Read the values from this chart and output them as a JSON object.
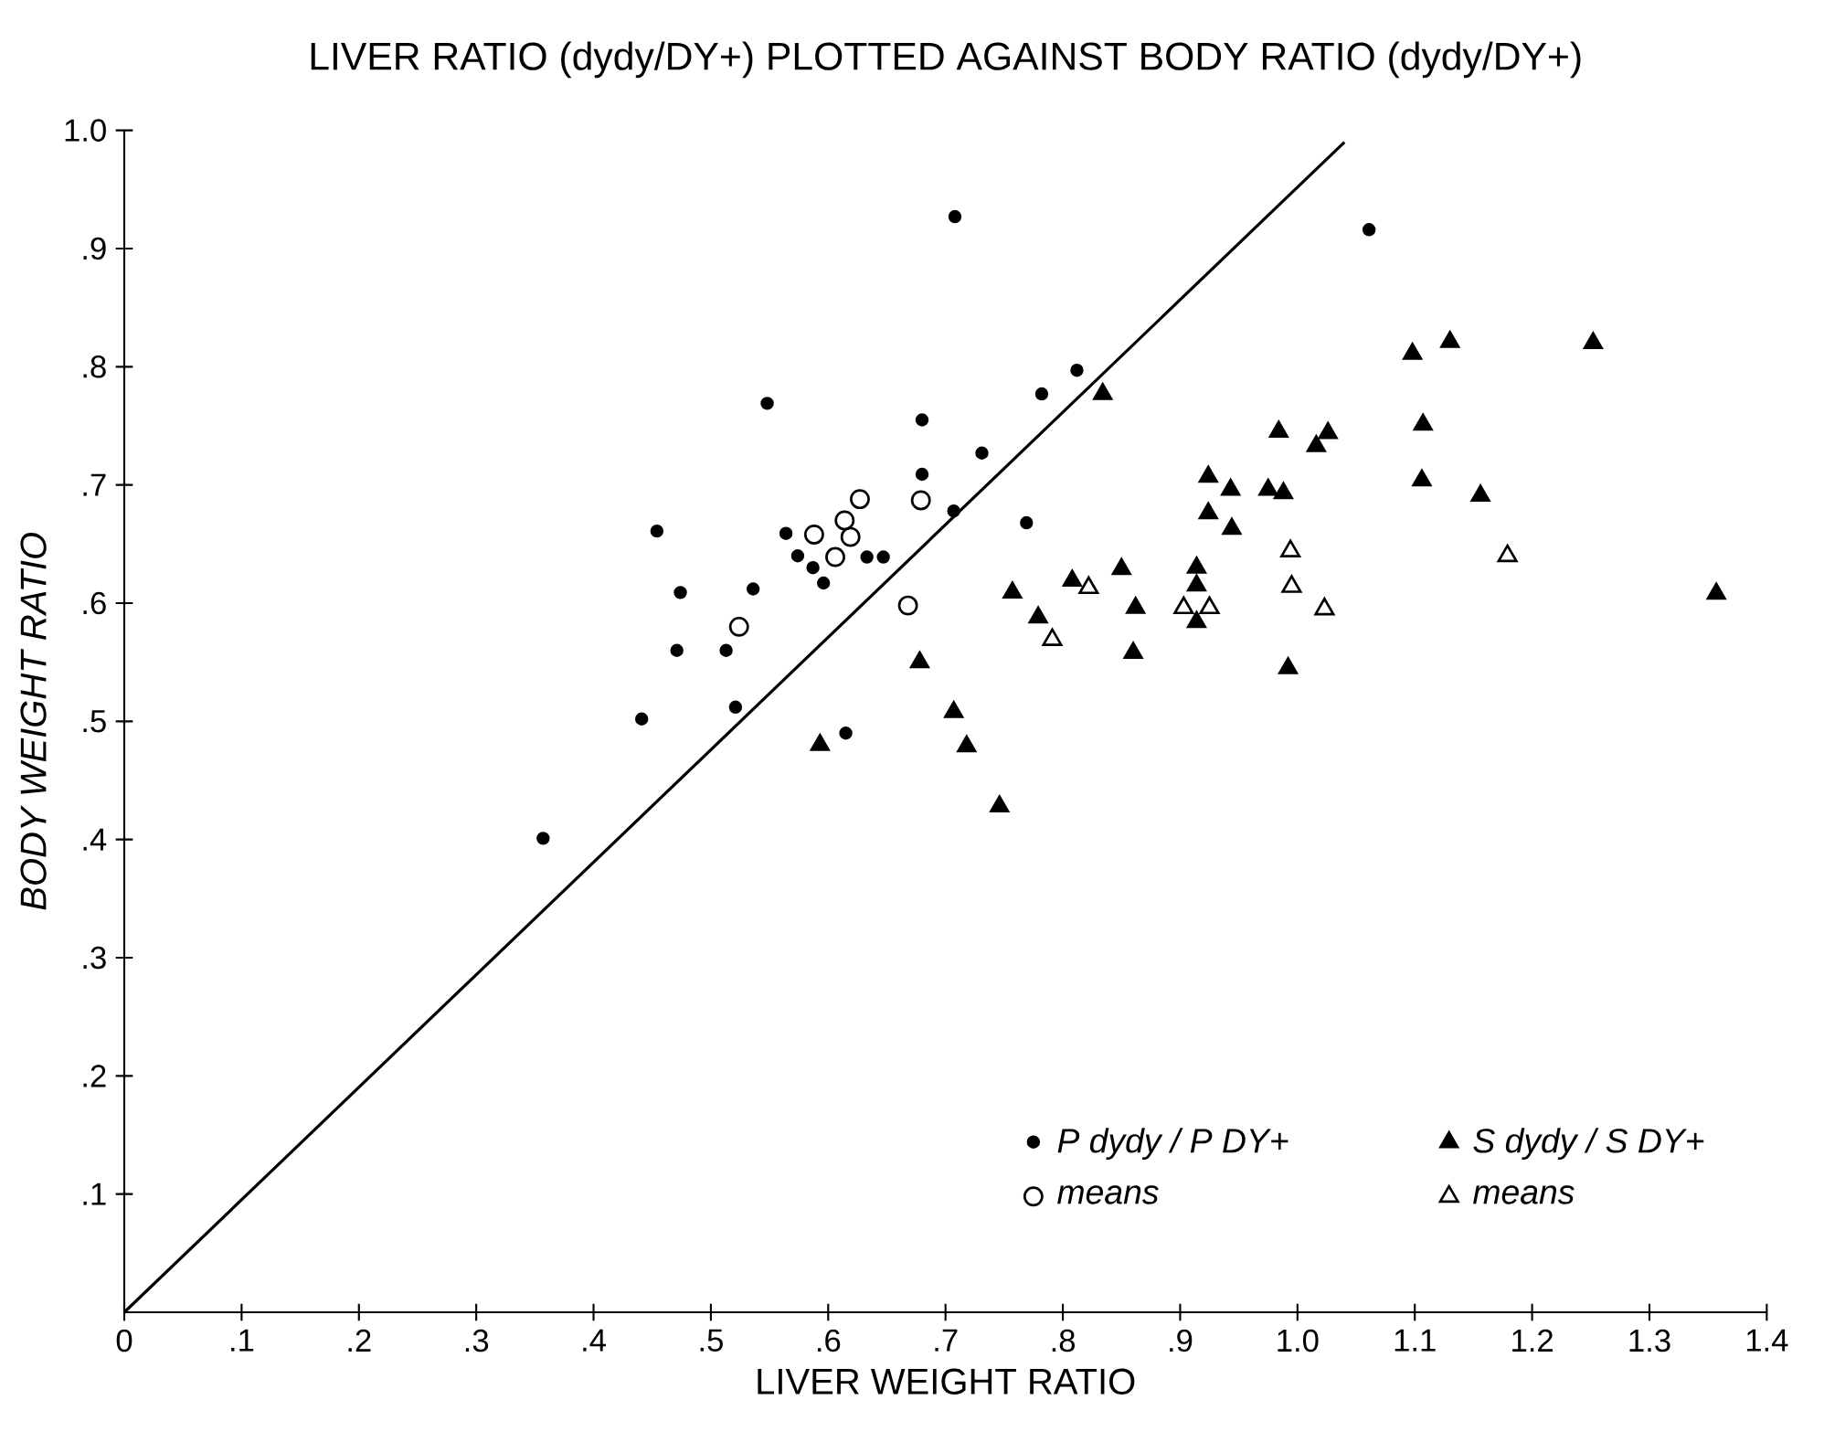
{
  "chart_data": {
    "type": "scatter",
    "title": "LIVER RATIO (dydy/DY+) PLOTTED AGAINST BODY RATIO (dydy/DY+)",
    "xlabel": "LIVER WEIGHT RATIO",
    "ylabel": "BODY WEIGHT RATIO",
    "xlim": [
      0,
      1.4
    ],
    "ylim": [
      0,
      1.0
    ],
    "xticks": [
      0,
      {
        "value": 0.1,
        "label": ".1"
      },
      {
        "value": 0.2,
        "label": ".2"
      },
      {
        "value": 0.3,
        "label": ".3"
      },
      {
        "value": 0.4,
        "label": ".4"
      },
      {
        "value": 0.5,
        "label": ".5"
      },
      {
        "value": 0.6,
        "label": ".6"
      },
      {
        "value": 0.7,
        "label": ".7"
      },
      {
        "value": 0.8,
        "label": ".8"
      },
      {
        "value": 0.9,
        "label": ".9"
      },
      {
        "value": 1.0,
        "label": "1.0"
      },
      {
        "value": 1.1,
        "label": "1.1"
      },
      {
        "value": 1.2,
        "label": "1.2"
      },
      {
        "value": 1.3,
        "label": "1.3"
      },
      {
        "value": 1.4,
        "label": "1.4"
      }
    ],
    "yticks": [
      {
        "value": 0.1,
        "label": ".1"
      },
      {
        "value": 0.2,
        "label": ".2"
      },
      {
        "value": 0.3,
        "label": ".3"
      },
      {
        "value": 0.4,
        "label": ".4"
      },
      {
        "value": 0.5,
        "label": ".5"
      },
      {
        "value": 0.6,
        "label": ".6"
      },
      {
        "value": 0.7,
        "label": ".7"
      },
      {
        "value": 0.8,
        "label": ".8"
      },
      {
        "value": 0.9,
        "label": ".9"
      },
      {
        "value": 1.0,
        "label": "1.0"
      }
    ],
    "legend": "bottom right",
    "series": [
      {
        "name": "P dydy / P DY+",
        "color": "#000000",
        "marker": "circle",
        "x": [
          0.708,
          0.548,
          0.68,
          0.731,
          0.68,
          0.707,
          0.769,
          0.782,
          0.812,
          0.454,
          0.564,
          0.574,
          0.587,
          0.596,
          0.633,
          0.647,
          0.474,
          0.536,
          0.471,
          0.513,
          0.521,
          0.441,
          0.615,
          0.357,
          1.061
        ],
        "values": [
          0.927,
          0.769,
          0.755,
          0.727,
          0.709,
          0.678,
          0.668,
          0.777,
          0.797,
          0.661,
          0.659,
          0.64,
          0.63,
          0.617,
          0.639,
          0.639,
          0.609,
          0.612,
          0.56,
          0.56,
          0.512,
          0.502,
          0.49,
          0.401,
          0.916
        ]
      },
      {
        "name": "S dydy / S DY+",
        "color": "#000000",
        "marker": "triangle",
        "x": [
          0.757,
          0.808,
          0.779,
          0.678,
          0.707,
          0.718,
          0.593,
          0.746,
          0.834,
          1.098,
          1.13,
          1.252,
          1.107,
          1.106,
          1.156,
          0.984,
          1.026,
          1.016,
          0.924,
          0.943,
          0.975,
          0.988,
          0.924,
          0.944,
          0.85,
          0.914,
          0.914,
          0.862,
          0.914,
          0.86,
          0.992,
          1.357
        ],
        "values": [
          0.609,
          0.619,
          0.588,
          0.55,
          0.508,
          0.479,
          0.48,
          0.428,
          0.777,
          0.811,
          0.821,
          0.82,
          0.751,
          0.704,
          0.691,
          0.745,
          0.744,
          0.733,
          0.707,
          0.696,
          0.696,
          0.693,
          0.676,
          0.663,
          0.629,
          0.63,
          0.615,
          0.596,
          0.584,
          0.558,
          0.545,
          0.608
        ]
      },
      {
        "name": "means",
        "color": "#000000",
        "marker": "circle-open",
        "x": [
          0.627,
          0.679,
          0.614,
          0.619,
          0.588,
          0.606,
          0.524,
          0.668
        ],
        "values": [
          0.688,
          0.687,
          0.67,
          0.656,
          0.658,
          0.639,
          0.58,
          0.598
        ]
      },
      {
        "name": "means",
        "color": "#000000",
        "marker": "triangle-open",
        "x": [
          0.791,
          0.822,
          0.903,
          0.925,
          0.994,
          0.995,
          1.023,
          1.179
        ],
        "values": [
          0.569,
          0.613,
          0.596,
          0.596,
          0.644,
          0.614,
          0.595,
          0.64
        ]
      },
      {
        "type": "line",
        "color": "#000000",
        "x": [
          0,
          1.04
        ],
        "values": [
          0,
          0.99
        ]
      }
    ]
  }
}
